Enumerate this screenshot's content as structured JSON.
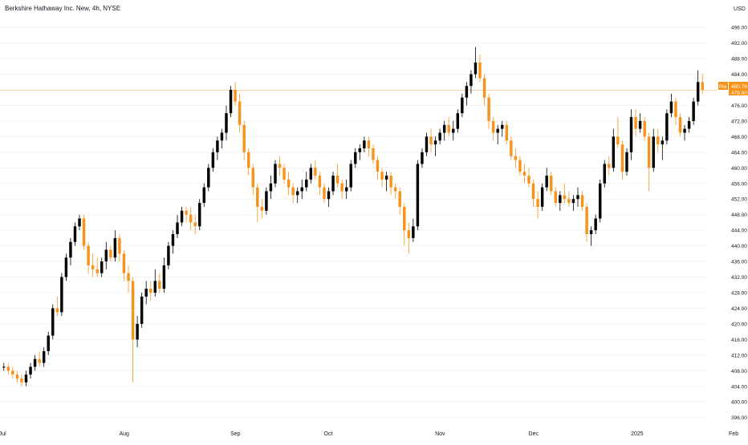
{
  "chart_data": {
    "type": "candlestick",
    "title": "Berkshire Hathaway Inc. New, 4h, NYSE",
    "currency": "USD",
    "y_ticks": [
      "396.00",
      "400.00",
      "404.00",
      "408.00",
      "412.00",
      "416.00",
      "420.00",
      "424.00",
      "428.00",
      "432.00",
      "436.00",
      "440.00",
      "444.00",
      "448.00",
      "452.00",
      "456.00",
      "460.00",
      "464.00",
      "468.00",
      "472.00",
      "476.00",
      "480.00",
      "484.00",
      "488.00",
      "492.00",
      "496.00"
    ],
    "ylim": [
      394.5,
      498.5
    ],
    "x_ticks": [
      {
        "label": "Jul",
        "index": 0
      },
      {
        "label": "Aug",
        "index": 27
      },
      {
        "label": "Sep",
        "index": 52
      },
      {
        "label": "Oct",
        "index": 73
      },
      {
        "label": "Nov",
        "index": 98
      },
      {
        "label": "Dec",
        "index": 119
      },
      {
        "label": "2025",
        "index": 142
      },
      {
        "label": "Feb",
        "index": 164
      }
    ],
    "last_price": 479.9,
    "pre_label": "Pre",
    "pre_price": "480.78",
    "close_label": "479.90",
    "colors": {
      "up": "#000000",
      "down": "#f7931a",
      "price_line": "#f7931a",
      "text": "#131722",
      "muted": "#787b86"
    },
    "candles": [
      [
        409,
        410,
        408,
        409
      ],
      [
        409,
        410,
        407,
        408
      ],
      [
        408,
        409,
        406,
        407
      ],
      [
        407,
        408,
        405,
        406
      ],
      [
        406,
        407,
        404,
        405
      ],
      [
        405,
        408,
        404,
        407
      ],
      [
        407,
        410,
        406,
        409
      ],
      [
        409,
        412,
        408,
        411
      ],
      [
        411,
        413,
        409,
        410
      ],
      [
        410,
        414,
        409,
        413
      ],
      [
        413,
        418,
        412,
        417
      ],
      [
        417,
        425,
        416,
        424
      ],
      [
        424,
        427,
        422,
        423
      ],
      [
        423,
        433,
        422,
        432
      ],
      [
        432,
        438,
        431,
        437
      ],
      [
        437,
        442,
        435,
        441
      ],
      [
        441,
        446,
        440,
        445
      ],
      [
        445,
        448,
        444,
        447
      ],
      [
        447,
        448,
        439,
        440
      ],
      [
        440,
        441,
        433,
        435
      ],
      [
        435,
        438,
        432,
        434
      ],
      [
        434,
        437,
        432,
        433
      ],
      [
        433,
        437,
        432,
        436
      ],
      [
        436,
        441,
        434,
        439
      ],
      [
        439,
        440,
        436,
        437
      ],
      [
        437,
        444,
        436,
        442
      ],
      [
        442,
        443,
        436,
        438
      ],
      [
        438,
        439,
        431,
        433
      ],
      [
        433,
        435,
        428,
        431
      ],
      [
        431,
        432,
        405,
        416
      ],
      [
        416,
        422,
        414,
        420
      ],
      [
        420,
        428,
        419,
        427
      ],
      [
        427,
        431,
        425,
        429
      ],
      [
        429,
        431,
        426,
        428
      ],
      [
        428,
        434,
        427,
        431
      ],
      [
        431,
        433,
        428,
        429
      ],
      [
        429,
        437,
        428,
        435
      ],
      [
        435,
        441,
        434,
        440
      ],
      [
        440,
        444,
        438,
        443
      ],
      [
        443,
        448,
        442,
        446
      ],
      [
        446,
        450,
        445,
        449
      ],
      [
        449,
        450,
        446,
        448
      ],
      [
        448,
        450,
        444,
        446
      ],
      [
        446,
        448,
        443,
        445
      ],
      [
        445,
        452,
        444,
        451
      ],
      [
        451,
        456,
        450,
        455
      ],
      [
        455,
        461,
        454,
        460
      ],
      [
        460,
        465,
        459,
        464
      ],
      [
        464,
        468,
        462,
        467
      ],
      [
        467,
        470,
        465,
        469
      ],
      [
        469,
        476,
        467,
        474
      ],
      [
        474,
        481,
        473,
        480
      ],
      [
        480,
        482,
        476,
        477
      ],
      [
        477,
        479,
        469,
        471
      ],
      [
        471,
        472,
        462,
        464
      ],
      [
        464,
        465,
        458,
        460
      ],
      [
        460,
        461,
        453,
        455
      ],
      [
        455,
        456,
        446,
        450
      ],
      [
        450,
        452,
        447,
        449
      ],
      [
        449,
        455,
        448,
        454
      ],
      [
        454,
        458,
        452,
        456
      ],
      [
        456,
        462,
        455,
        461
      ],
      [
        461,
        463,
        458,
        460
      ],
      [
        460,
        461,
        456,
        457
      ],
      [
        457,
        459,
        453,
        455
      ],
      [
        455,
        456,
        451,
        453
      ],
      [
        453,
        455,
        451,
        454
      ],
      [
        454,
        457,
        452,
        455
      ],
      [
        455,
        459,
        454,
        457
      ],
      [
        457,
        461,
        456,
        460
      ],
      [
        460,
        462,
        457,
        458
      ],
      [
        458,
        459,
        453,
        455
      ],
      [
        455,
        456,
        451,
        452
      ],
      [
        452,
        455,
        450,
        454
      ],
      [
        454,
        459,
        453,
        458
      ],
      [
        458,
        461,
        455,
        456
      ],
      [
        456,
        457,
        452,
        454
      ],
      [
        454,
        457,
        452,
        455
      ],
      [
        455,
        462,
        454,
        461
      ],
      [
        461,
        465,
        460,
        464
      ],
      [
        464,
        466,
        462,
        465
      ],
      [
        465,
        468,
        464,
        467
      ],
      [
        467,
        468,
        463,
        465
      ],
      [
        465,
        466,
        461,
        462
      ],
      [
        462,
        463,
        457,
        459
      ],
      [
        459,
        460,
        455,
        457
      ],
      [
        457,
        459,
        454,
        458
      ],
      [
        458,
        459,
        453,
        455
      ],
      [
        455,
        456,
        452,
        454
      ],
      [
        454,
        455,
        448,
        450
      ],
      [
        450,
        451,
        440,
        444
      ],
      [
        444,
        446,
        438,
        442
      ],
      [
        442,
        447,
        441,
        445
      ],
      [
        445,
        462,
        444,
        461
      ],
      [
        461,
        465,
        460,
        464
      ],
      [
        464,
        469,
        463,
        468
      ],
      [
        468,
        470,
        464,
        466
      ],
      [
        466,
        468,
        463,
        467
      ],
      [
        467,
        470,
        466,
        469
      ],
      [
        469,
        472,
        467,
        471
      ],
      [
        471,
        473,
        468,
        469
      ],
      [
        469,
        472,
        467,
        470
      ],
      [
        470,
        475,
        469,
        474
      ],
      [
        474,
        479,
        473,
        478
      ],
      [
        478,
        482,
        476,
        481
      ],
      [
        481,
        485,
        479,
        484
      ],
      [
        484,
        491,
        483,
        487
      ],
      [
        487,
        489,
        482,
        483
      ],
      [
        483,
        484,
        476,
        478
      ],
      [
        478,
        479,
        470,
        472
      ],
      [
        472,
        473,
        467,
        469
      ],
      [
        469,
        471,
        466,
        470
      ],
      [
        470,
        472,
        468,
        471
      ],
      [
        471,
        472,
        466,
        467
      ],
      [
        467,
        468,
        462,
        463
      ],
      [
        463,
        465,
        460,
        462
      ],
      [
        462,
        463,
        458,
        459
      ],
      [
        459,
        461,
        456,
        458
      ],
      [
        458,
        460,
        455,
        456
      ],
      [
        456,
        457,
        450,
        452
      ],
      [
        452,
        454,
        447,
        450
      ],
      [
        450,
        456,
        449,
        455
      ],
      [
        455,
        460,
        454,
        458
      ],
      [
        458,
        459,
        453,
        454
      ],
      [
        454,
        455,
        450,
        451
      ],
      [
        451,
        454,
        449,
        453
      ],
      [
        453,
        456,
        451,
        452
      ],
      [
        452,
        454,
        450,
        451
      ],
      [
        451,
        453,
        449,
        452
      ],
      [
        452,
        455,
        450,
        453
      ],
      [
        453,
        454,
        449,
        450
      ],
      [
        450,
        451,
        441,
        443
      ],
      [
        443,
        445,
        440,
        444
      ],
      [
        444,
        448,
        443,
        447
      ],
      [
        447,
        457,
        446,
        456
      ],
      [
        456,
        462,
        455,
        461
      ],
      [
        461,
        463,
        458,
        460
      ],
      [
        460,
        470,
        459,
        468
      ],
      [
        468,
        473,
        465,
        466
      ],
      [
        466,
        467,
        457,
        459
      ],
      [
        459,
        465,
        458,
        464
      ],
      [
        464,
        475,
        462,
        473
      ],
      [
        473,
        475,
        468,
        470
      ],
      [
        470,
        474,
        469,
        472
      ],
      [
        472,
        473,
        467,
        468
      ],
      [
        468,
        469,
        454,
        460
      ],
      [
        460,
        470,
        459,
        468
      ],
      [
        468,
        470,
        464,
        466
      ],
      [
        466,
        468,
        462,
        467
      ],
      [
        467,
        475,
        466,
        474
      ],
      [
        474,
        479,
        473,
        477
      ],
      [
        477,
        478,
        471,
        473
      ],
      [
        473,
        474,
        468,
        469
      ],
      [
        469,
        471,
        467,
        470
      ],
      [
        470,
        473,
        469,
        472
      ],
      [
        472,
        478,
        471,
        477
      ],
      [
        477,
        485,
        476,
        482
      ],
      [
        482,
        484,
        479,
        480
      ]
    ]
  }
}
